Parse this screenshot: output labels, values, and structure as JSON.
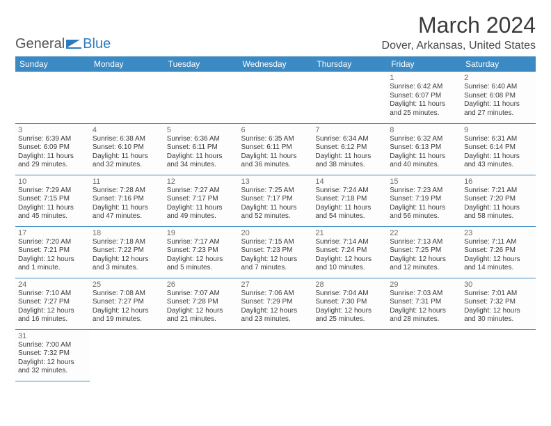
{
  "brand": {
    "general": "General",
    "blue": "Blue"
  },
  "title": "March 2024",
  "location": "Dover, Arkansas, United States",
  "colors": {
    "header_bg": "#3b8ac4",
    "header_text": "#ffffff",
    "row_divider": "#3b8ac4",
    "page_bg": "#ffffff",
    "text": "#3a3a3a"
  },
  "day_headers": [
    "Sunday",
    "Monday",
    "Tuesday",
    "Wednesday",
    "Thursday",
    "Friday",
    "Saturday"
  ],
  "layout": {
    "first_weekday_index": 5,
    "days_in_month": 31,
    "rows": 6,
    "cols": 7
  },
  "days": {
    "1": {
      "sunrise": "6:42 AM",
      "sunset": "6:07 PM",
      "daylight": "11 hours and 25 minutes."
    },
    "2": {
      "sunrise": "6:40 AM",
      "sunset": "6:08 PM",
      "daylight": "11 hours and 27 minutes."
    },
    "3": {
      "sunrise": "6:39 AM",
      "sunset": "6:09 PM",
      "daylight": "11 hours and 29 minutes."
    },
    "4": {
      "sunrise": "6:38 AM",
      "sunset": "6:10 PM",
      "daylight": "11 hours and 32 minutes."
    },
    "5": {
      "sunrise": "6:36 AM",
      "sunset": "6:11 PM",
      "daylight": "11 hours and 34 minutes."
    },
    "6": {
      "sunrise": "6:35 AM",
      "sunset": "6:11 PM",
      "daylight": "11 hours and 36 minutes."
    },
    "7": {
      "sunrise": "6:34 AM",
      "sunset": "6:12 PM",
      "daylight": "11 hours and 38 minutes."
    },
    "8": {
      "sunrise": "6:32 AM",
      "sunset": "6:13 PM",
      "daylight": "11 hours and 40 minutes."
    },
    "9": {
      "sunrise": "6:31 AM",
      "sunset": "6:14 PM",
      "daylight": "11 hours and 43 minutes."
    },
    "10": {
      "sunrise": "7:29 AM",
      "sunset": "7:15 PM",
      "daylight": "11 hours and 45 minutes."
    },
    "11": {
      "sunrise": "7:28 AM",
      "sunset": "7:16 PM",
      "daylight": "11 hours and 47 minutes."
    },
    "12": {
      "sunrise": "7:27 AM",
      "sunset": "7:17 PM",
      "daylight": "11 hours and 49 minutes."
    },
    "13": {
      "sunrise": "7:25 AM",
      "sunset": "7:17 PM",
      "daylight": "11 hours and 52 minutes."
    },
    "14": {
      "sunrise": "7:24 AM",
      "sunset": "7:18 PM",
      "daylight": "11 hours and 54 minutes."
    },
    "15": {
      "sunrise": "7:23 AM",
      "sunset": "7:19 PM",
      "daylight": "11 hours and 56 minutes."
    },
    "16": {
      "sunrise": "7:21 AM",
      "sunset": "7:20 PM",
      "daylight": "11 hours and 58 minutes."
    },
    "17": {
      "sunrise": "7:20 AM",
      "sunset": "7:21 PM",
      "daylight": "12 hours and 1 minute."
    },
    "18": {
      "sunrise": "7:18 AM",
      "sunset": "7:22 PM",
      "daylight": "12 hours and 3 minutes."
    },
    "19": {
      "sunrise": "7:17 AM",
      "sunset": "7:23 PM",
      "daylight": "12 hours and 5 minutes."
    },
    "20": {
      "sunrise": "7:15 AM",
      "sunset": "7:23 PM",
      "daylight": "12 hours and 7 minutes."
    },
    "21": {
      "sunrise": "7:14 AM",
      "sunset": "7:24 PM",
      "daylight": "12 hours and 10 minutes."
    },
    "22": {
      "sunrise": "7:13 AM",
      "sunset": "7:25 PM",
      "daylight": "12 hours and 12 minutes."
    },
    "23": {
      "sunrise": "7:11 AM",
      "sunset": "7:26 PM",
      "daylight": "12 hours and 14 minutes."
    },
    "24": {
      "sunrise": "7:10 AM",
      "sunset": "7:27 PM",
      "daylight": "12 hours and 16 minutes."
    },
    "25": {
      "sunrise": "7:08 AM",
      "sunset": "7:27 PM",
      "daylight": "12 hours and 19 minutes."
    },
    "26": {
      "sunrise": "7:07 AM",
      "sunset": "7:28 PM",
      "daylight": "12 hours and 21 minutes."
    },
    "27": {
      "sunrise": "7:06 AM",
      "sunset": "7:29 PM",
      "daylight": "12 hours and 23 minutes."
    },
    "28": {
      "sunrise": "7:04 AM",
      "sunset": "7:30 PM",
      "daylight": "12 hours and 25 minutes."
    },
    "29": {
      "sunrise": "7:03 AM",
      "sunset": "7:31 PM",
      "daylight": "12 hours and 28 minutes."
    },
    "30": {
      "sunrise": "7:01 AM",
      "sunset": "7:32 PM",
      "daylight": "12 hours and 30 minutes."
    },
    "31": {
      "sunrise": "7:00 AM",
      "sunset": "7:32 PM",
      "daylight": "12 hours and 32 minutes."
    }
  },
  "labels": {
    "sunrise": "Sunrise: ",
    "sunset": "Sunset: ",
    "daylight": "Daylight: "
  }
}
